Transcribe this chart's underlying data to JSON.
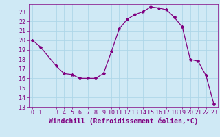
{
  "x": [
    0,
    1,
    3,
    4,
    5,
    6,
    7,
    8,
    9,
    10,
    11,
    12,
    13,
    14,
    15,
    16,
    17,
    18,
    19,
    20,
    21,
    22,
    23
  ],
  "y": [
    20.0,
    19.3,
    17.3,
    16.5,
    16.4,
    16.0,
    16.0,
    16.0,
    16.5,
    18.8,
    21.2,
    22.2,
    22.7,
    23.0,
    23.5,
    23.4,
    23.2,
    22.4,
    21.4,
    18.0,
    17.8,
    16.3,
    13.3
  ],
  "line_color": "#800080",
  "marker": "*",
  "marker_size": 3,
  "bg_color": "#cfe9f5",
  "grid_color": "#aed6e8",
  "xlabel": "Windchill (Refroidissement éolien,°C)",
  "xlabel_color": "#800080",
  "xlabel_fontsize": 7,
  "tick_color": "#800080",
  "tick_fontsize": 6,
  "ylim": [
    13,
    23.8
  ],
  "xlim": [
    -0.5,
    23.5
  ],
  "yticks": [
    13,
    14,
    15,
    16,
    17,
    18,
    19,
    20,
    21,
    22,
    23
  ],
  "xticks": [
    0,
    1,
    3,
    4,
    5,
    6,
    7,
    8,
    9,
    10,
    11,
    12,
    13,
    14,
    15,
    16,
    17,
    18,
    19,
    20,
    21,
    22,
    23
  ]
}
